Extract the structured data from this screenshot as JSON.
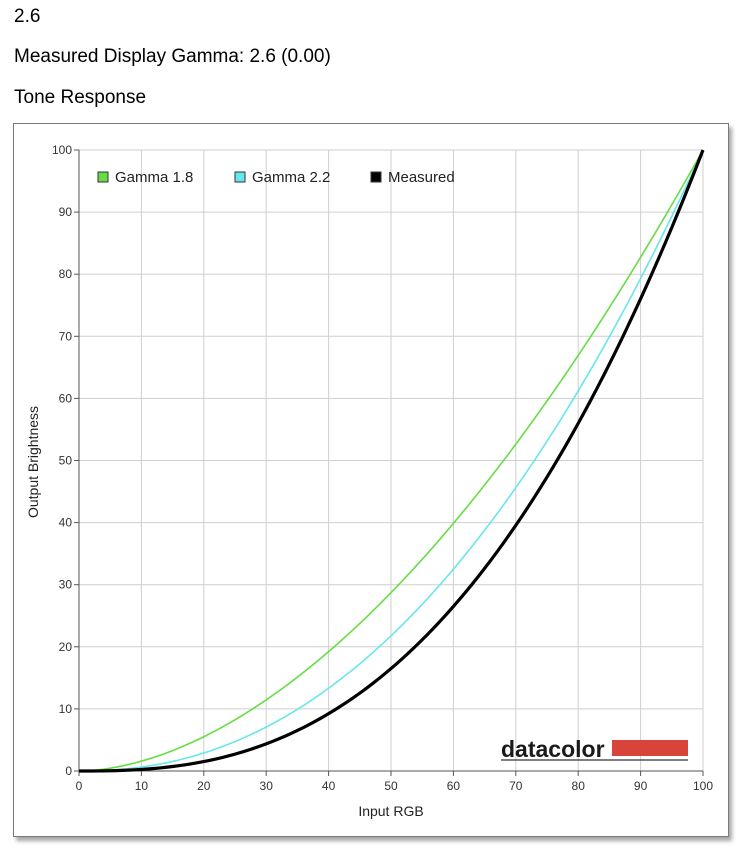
{
  "header": {
    "gamma_value": "2.6",
    "measured_text": "Measured Display Gamma: 2.6 (0.00)",
    "section_title": "Tone Response"
  },
  "logo": {
    "text": "datacolor",
    "bar_color": "#d9443a"
  },
  "chart_data": {
    "type": "line",
    "title": "",
    "xlabel": "Input RGB",
    "ylabel": "Output Brightness",
    "xlim": [
      0,
      100
    ],
    "ylim": [
      0,
      100
    ],
    "xticks": [
      0,
      10,
      20,
      30,
      40,
      50,
      60,
      70,
      80,
      90,
      100
    ],
    "yticks": [
      0,
      10,
      20,
      30,
      40,
      50,
      60,
      70,
      80,
      90,
      100
    ],
    "grid": true,
    "legend_position": "top-left",
    "x": [
      0,
      5,
      10,
      15,
      20,
      25,
      30,
      35,
      40,
      45,
      50,
      55,
      60,
      65,
      70,
      75,
      80,
      85,
      90,
      95,
      100
    ],
    "series": [
      {
        "name": "Gamma 1.8",
        "gamma": 1.8,
        "color": "#66dd44",
        "values": [
          0,
          0.5,
          1.6,
          3.3,
          5.5,
          8.2,
          11.5,
          15.1,
          19.2,
          23.8,
          28.7,
          34.0,
          39.9,
          46.1,
          52.6,
          59.6,
          66.9,
          74.6,
          82.7,
          91.2,
          100
        ]
      },
      {
        "name": "Gamma 2.2",
        "gamma": 2.2,
        "color": "#66e6ee",
        "values": [
          0,
          0.1,
          0.6,
          1.5,
          2.9,
          4.8,
          7.1,
          9.9,
          13.3,
          17.3,
          21.8,
          26.8,
          32.5,
          38.7,
          45.6,
          53.1,
          61.2,
          69.9,
          79.3,
          89.3,
          100
        ]
      },
      {
        "name": "Measured",
        "gamma": 2.6,
        "color": "#000000",
        "values": [
          0,
          0.0,
          0.3,
          0.7,
          1.5,
          2.7,
          4.4,
          6.5,
          9.2,
          12.6,
          16.5,
          21.2,
          26.5,
          32.6,
          39.6,
          47.3,
          56.0,
          65.5,
          76.0,
          87.5,
          100
        ]
      }
    ]
  }
}
